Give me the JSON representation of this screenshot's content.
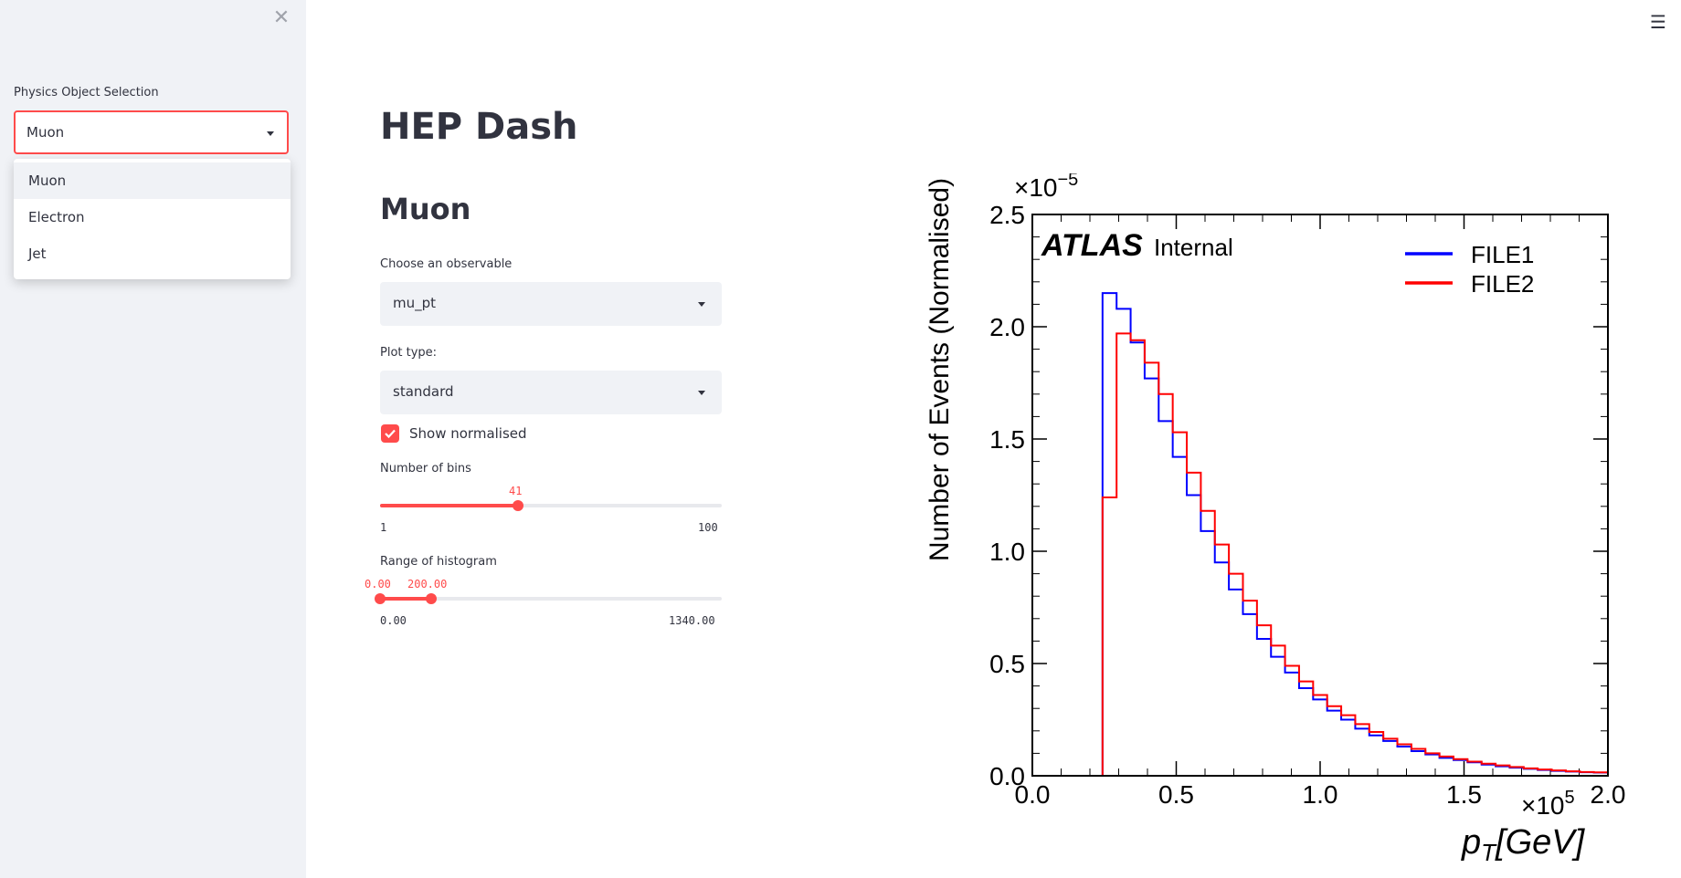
{
  "sidebar": {
    "close_icon": "close-icon",
    "label": "Physics Object Selection",
    "selected": "Muon",
    "options": [
      "Muon",
      "Electron",
      "Jet"
    ]
  },
  "header": {
    "menu_icon": "hamburger-icon"
  },
  "main": {
    "title": "HEP Dash",
    "section": "Muon",
    "observable": {
      "label": "Choose an observable",
      "value": "mu_pt"
    },
    "plot_type": {
      "label": "Plot type:",
      "value": "standard"
    },
    "normalised": {
      "label": "Show normalised",
      "checked": true
    },
    "bins": {
      "label": "Number of bins",
      "value": "41",
      "min": "1",
      "max": "100",
      "fraction": 0.404
    },
    "range": {
      "label": "Range of histogram",
      "low": "0.00",
      "high": "200.00",
      "min": "0.00",
      "max": "1340.00",
      "low_fraction": 0.0,
      "high_fraction": 0.149
    }
  },
  "colors": {
    "accent": "#ff4b4b",
    "sidebar_bg": "#f0f2f6"
  },
  "chart_data": {
    "type": "line",
    "style": "step histogram",
    "ylabel": "Number of Events (Normalised)",
    "xlabel": "p_T[GeV]",
    "x_multiplier": "×10^5",
    "y_multiplier": "×10^−5",
    "atlas_label": "ATLAS",
    "atlas_sub": "Internal",
    "xlim": [
      0,
      2.0
    ],
    "ylim": [
      0,
      2.5
    ],
    "x_ticks": [
      "0.0",
      "0.5",
      "1.0",
      "1.5",
      "2.0"
    ],
    "y_ticks": [
      "0.0",
      "0.5",
      "1.0",
      "1.5",
      "2.0",
      "2.5"
    ],
    "bin_edges": [
      0.0,
      0.0488,
      0.0976,
      0.1463,
      0.1951,
      0.2439,
      0.2927,
      0.3415,
      0.3902,
      0.439,
      0.4878,
      0.5366,
      0.5854,
      0.6341,
      0.6829,
      0.7317,
      0.7805,
      0.8293,
      0.878,
      0.9268,
      0.9756,
      1.0244,
      1.0732,
      1.122,
      1.1707,
      1.2195,
      1.2683,
      1.3171,
      1.3659,
      1.4146,
      1.4634,
      1.5122,
      1.561,
      1.6098,
      1.6585,
      1.7073,
      1.7561,
      1.8049,
      1.8537,
      1.9024,
      1.9512,
      2.0
    ],
    "legend_position": "top-right",
    "series": [
      {
        "name": "FILE1",
        "color": "#0000ff",
        "values": [
          0,
          0,
          0,
          0,
          0,
          2.15,
          2.08,
          1.93,
          1.77,
          1.58,
          1.42,
          1.25,
          1.09,
          0.95,
          0.83,
          0.72,
          0.61,
          0.53,
          0.46,
          0.39,
          0.34,
          0.29,
          0.25,
          0.21,
          0.18,
          0.155,
          0.13,
          0.11,
          0.095,
          0.08,
          0.07,
          0.06,
          0.05,
          0.042,
          0.036,
          0.031,
          0.026,
          0.022,
          0.019,
          0.016,
          0.014
        ]
      },
      {
        "name": "FILE2",
        "color": "#ff0000",
        "values": [
          0,
          0,
          0,
          0,
          0,
          1.24,
          1.97,
          1.94,
          1.84,
          1.7,
          1.53,
          1.35,
          1.18,
          1.03,
          0.9,
          0.78,
          0.67,
          0.58,
          0.49,
          0.42,
          0.36,
          0.31,
          0.27,
          0.23,
          0.195,
          0.165,
          0.14,
          0.12,
          0.1,
          0.086,
          0.074,
          0.063,
          0.054,
          0.046,
          0.039,
          0.033,
          0.028,
          0.024,
          0.02,
          0.017,
          0.015
        ]
      }
    ]
  }
}
